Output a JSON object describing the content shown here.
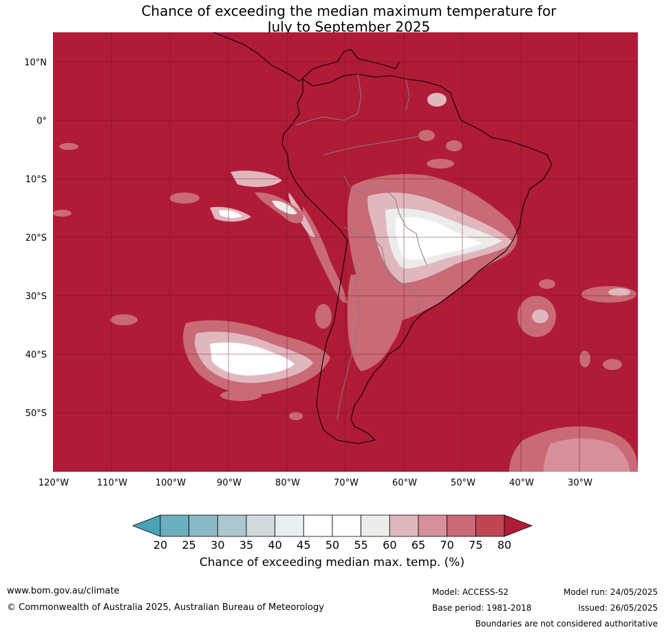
{
  "title": {
    "line1": "Chance of exceeding the median maximum temperature for",
    "line2": "July to September 2025"
  },
  "map": {
    "lat_labels": [
      "10°N",
      "0°",
      "10°S",
      "20°S",
      "30°S",
      "40°S",
      "50°S"
    ],
    "lon_labels": [
      "120°W",
      "110°W",
      "100°W",
      "90°W",
      "80°W",
      "70°W",
      "60°W",
      "50°W",
      "40°W",
      "30°W"
    ],
    "background_color": "#b01b38",
    "coastline_color": "#000000",
    "border_color": "#808080"
  },
  "colorbar": {
    "ticks": [
      "20",
      "25",
      "30",
      "35",
      "40",
      "45",
      "50",
      "55",
      "60",
      "65",
      "70",
      "75",
      "80"
    ],
    "colors": [
      "#4aa3b4",
      "#6aafbf",
      "#8ab9c6",
      "#a9c7cd",
      "#d0d9db",
      "#e8eff1",
      "#ffffff",
      "#ffffff",
      "#ececea",
      "#e1b7be",
      "#d78f99",
      "#c96a77",
      "#c04553",
      "#b01b38"
    ],
    "label": "Chance of exceeding median max. temp. (%)"
  },
  "footer": {
    "website": "www.bom.gov.au/climate",
    "copyright": "© Commonwealth of Australia 2025, Australian Bureau of Meteorology",
    "model": "Model: ACCESS-S2",
    "base_period": "Base period: 1981-2018",
    "model_run": "Model run: 24/05/2025",
    "issued": "Issued: 26/05/2025",
    "disclaimer": "Boundaries are not considered authoritative"
  }
}
